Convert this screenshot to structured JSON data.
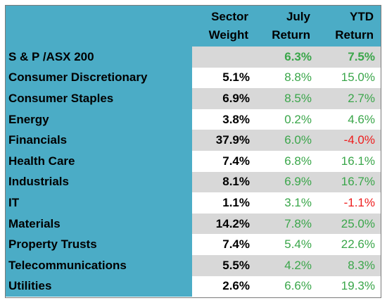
{
  "headers": [
    "",
    "Sector\nWeight",
    "July\nReturn",
    "YTD\nReturn"
  ],
  "colors": {
    "header_bg": "#4bacc6",
    "positive": "#3aa64a",
    "negative": "#ee1c1c",
    "shade": "#d8d8d8"
  },
  "rows": [
    {
      "name": "S & P /ASX 200",
      "weight": "",
      "july": "6.3%",
      "ytd": "7.5%",
      "shaded": true,
      "index": true
    },
    {
      "name": "Consumer Discretionary",
      "weight": "5.1%",
      "july": "8.8%",
      "ytd": "15.0%",
      "shaded": false
    },
    {
      "name": "Consumer Staples",
      "weight": "6.9%",
      "july": "8.5%",
      "ytd": "2.7%",
      "shaded": true
    },
    {
      "name": "Energy",
      "weight": "3.8%",
      "july": "0.2%",
      "ytd": "4.6%",
      "shaded": false
    },
    {
      "name": "Financials",
      "weight": "37.9%",
      "july": "6.0%",
      "ytd": "-4.0%",
      "shaded": true
    },
    {
      "name": "Health Care",
      "weight": "7.4%",
      "july": "6.8%",
      "ytd": "16.1%",
      "shaded": false
    },
    {
      "name": "Industrials",
      "weight": "8.1%",
      "july": "6.9%",
      "ytd": "16.7%",
      "shaded": true
    },
    {
      "name": "IT",
      "weight": "1.1%",
      "july": "3.1%",
      "ytd": "-1.1%",
      "shaded": false
    },
    {
      "name": "Materials",
      "weight": "14.2%",
      "july": "7.8%",
      "ytd": "25.0%",
      "shaded": true
    },
    {
      "name": "Property Trusts",
      "weight": "7.4%",
      "july": "5.4%",
      "ytd": "22.6%",
      "shaded": false
    },
    {
      "name": "Telecommunications",
      "weight": "5.5%",
      "july": "4.2%",
      "ytd": "8.3%",
      "shaded": true
    },
    {
      "name": "Utilities",
      "weight": "2.6%",
      "july": "6.6%",
      "ytd": "19.3%",
      "shaded": false
    }
  ]
}
